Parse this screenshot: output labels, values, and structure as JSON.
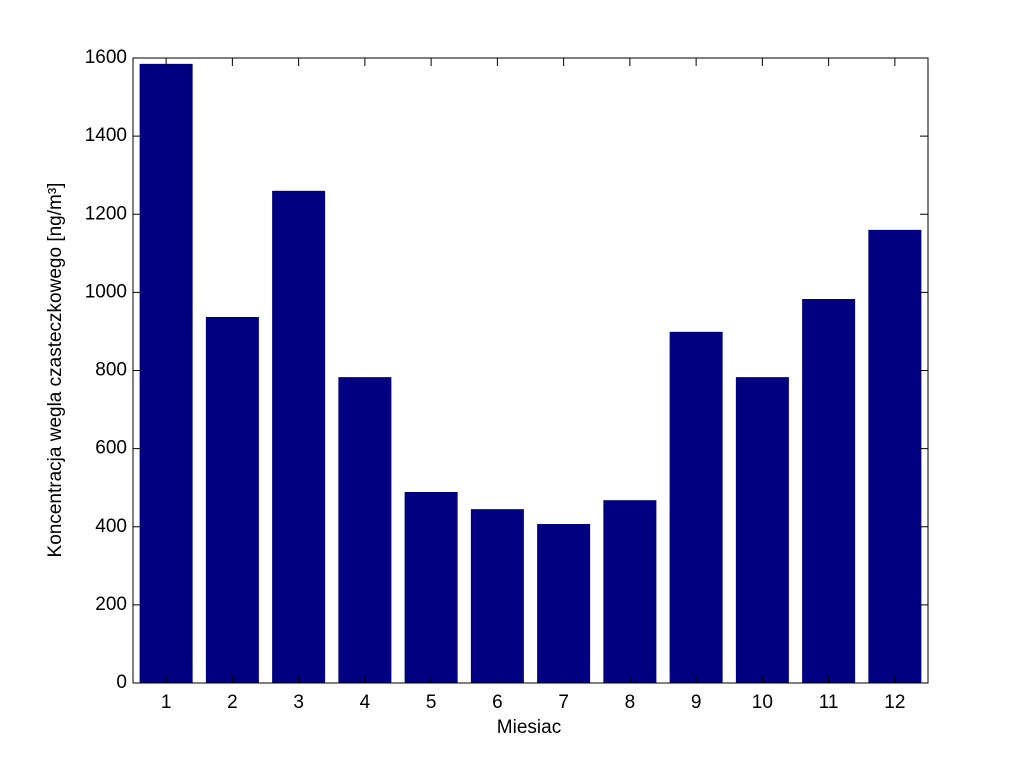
{
  "chart_data": {
    "type": "bar",
    "xlabel": "Miesiac",
    "ylabel": "Koncentracja wegla czasteczkowego [ng/m³]",
    "categories": [
      "1",
      "2",
      "3",
      "4",
      "5",
      "6",
      "7",
      "8",
      "9",
      "10",
      "11",
      "12"
    ],
    "values": [
      1585,
      937,
      1260,
      783,
      489,
      445,
      407,
      468,
      899,
      783,
      983,
      1160
    ],
    "color": "#000080",
    "ylim": [
      0,
      1600
    ],
    "yticks": [
      0,
      200,
      400,
      600,
      800,
      1000,
      1200,
      1400,
      1600
    ],
    "grid": false
  }
}
